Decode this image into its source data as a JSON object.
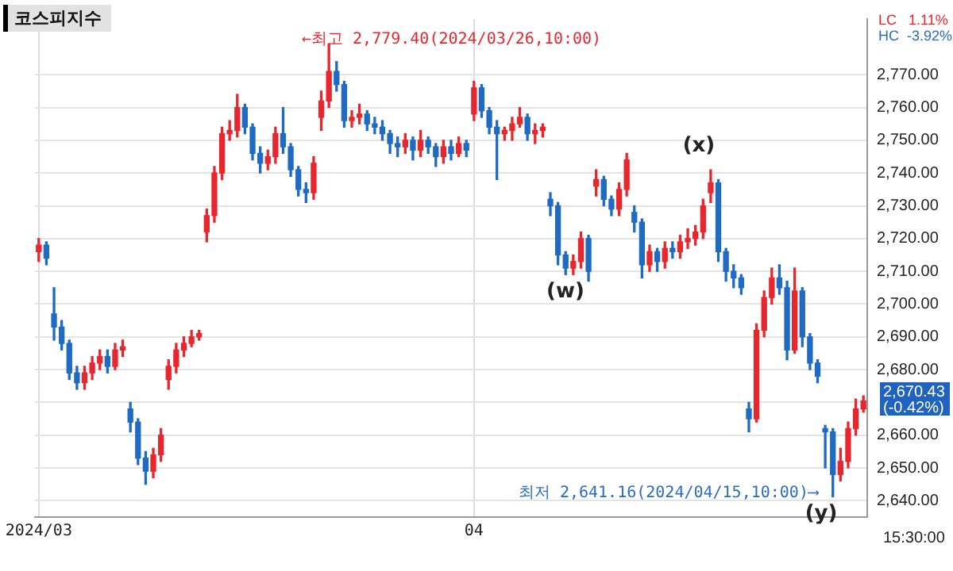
{
  "chart_data": {
    "type": "candlestick",
    "title": "코스피지수",
    "categories": [
      "2024/03",
      null,
      null,
      null,
      null,
      null,
      null,
      null,
      null,
      null,
      null,
      null,
      null,
      null,
      null,
      null,
      null,
      null,
      null,
      null,
      null,
      null,
      null,
      null,
      null,
      null,
      null,
      null,
      null,
      null,
      null,
      null,
      null,
      null,
      null,
      null,
      null,
      null,
      null,
      null,
      null,
      null,
      null,
      null,
      null,
      null,
      null,
      null,
      null,
      null,
      null,
      null,
      null,
      null,
      null,
      null,
      null,
      "04",
      null,
      null,
      null,
      null,
      null,
      null,
      null,
      null,
      null,
      null,
      null,
      null,
      null,
      null,
      null,
      null,
      null,
      null,
      null,
      null,
      null,
      null,
      null,
      null,
      null,
      null,
      null,
      null,
      null,
      null,
      null,
      null,
      null,
      null,
      null,
      null,
      null,
      null,
      null,
      null,
      null,
      null,
      null,
      null,
      null,
      null,
      null,
      null,
      null,
      null,
      null
    ],
    "ohlc": [
      [
        2716,
        2720,
        2713,
        2718
      ],
      [
        2718,
        2719,
        2712,
        2714
      ],
      [
        2697,
        2705,
        2689,
        2693
      ],
      [
        2693,
        2695,
        2686,
        2688
      ],
      [
        2688,
        2689,
        2677,
        2679
      ],
      [
        2679,
        2681,
        2674,
        2676
      ],
      [
        2676,
        2681,
        2674,
        2679
      ],
      [
        2679,
        2684,
        2677,
        2682
      ],
      [
        2682,
        2686,
        2680,
        2684
      ],
      [
        2684,
        2686,
        2679,
        2681
      ],
      [
        2681,
        2688,
        2680,
        2686
      ],
      [
        2686,
        2689,
        2684,
        2687
      ],
      [
        2668,
        2670,
        2661,
        2664
      ],
      [
        2664,
        2665,
        2651,
        2653
      ],
      [
        2653,
        2655,
        2645,
        2649
      ],
      [
        2649,
        2656,
        2647,
        2654
      ],
      [
        2654,
        2662,
        2652,
        2660
      ],
      [
        2677,
        2683,
        2674,
        2681
      ],
      [
        2681,
        2688,
        2679,
        2686
      ],
      [
        2686,
        2690,
        2684,
        2688
      ],
      [
        2688,
        2692,
        2687,
        2690
      ],
      [
        2690,
        2692,
        2689,
        2691
      ],
      [
        2722,
        2729,
        2719,
        2727
      ],
      [
        2727,
        2742,
        2725,
        2740
      ],
      [
        2740,
        2754,
        2738,
        2752
      ],
      [
        2752,
        2756,
        2750,
        2753
      ],
      [
        2753,
        2764,
        2751,
        2760
      ],
      [
        2760,
        2761,
        2752,
        2754
      ],
      [
        2754,
        2755,
        2744,
        2746
      ],
      [
        2746,
        2748,
        2740,
        2743
      ],
      [
        2743,
        2747,
        2741,
        2745
      ],
      [
        2745,
        2754,
        2743,
        2752
      ],
      [
        2752,
        2760,
        2746,
        2748
      ],
      [
        2748,
        2749,
        2739,
        2741
      ],
      [
        2741,
        2742,
        2733,
        2735
      ],
      [
        2735,
        2737,
        2731,
        2734
      ],
      [
        2734,
        2745,
        2732,
        2743
      ],
      [
        2757,
        2765,
        2753,
        2762
      ],
      [
        2762,
        2779.4,
        2760,
        2771
      ],
      [
        2771,
        2774,
        2765,
        2767
      ],
      [
        2767,
        2768,
        2754,
        2756
      ],
      [
        2756,
        2759,
        2754,
        2757
      ],
      [
        2757,
        2761,
        2755,
        2758
      ],
      [
        2758,
        2759,
        2753,
        2755
      ],
      [
        2755,
        2757,
        2752,
        2754
      ],
      [
        2754,
        2756,
        2750,
        2752
      ],
      [
        2752,
        2753,
        2746,
        2749
      ],
      [
        2749,
        2751,
        2745,
        2748
      ],
      [
        2748,
        2752,
        2746,
        2750
      ],
      [
        2750,
        2751,
        2744,
        2747
      ],
      [
        2747,
        2753,
        2745,
        2750
      ],
      [
        2750,
        2751,
        2746,
        2748
      ],
      [
        2748,
        2749,
        2742,
        2745
      ],
      [
        2745,
        2750,
        2743,
        2748
      ],
      [
        2748,
        2750,
        2744,
        2746
      ],
      [
        2746,
        2751,
        2745,
        2749
      ],
      [
        2749,
        2750,
        2745,
        2747
      ],
      [
        2758,
        2768,
        2756,
        2766
      ],
      [
        2766,
        2767,
        2757,
        2759
      ],
      [
        2759,
        2760,
        2752,
        2754
      ],
      [
        2754,
        2756,
        2738,
        2752
      ],
      [
        2752,
        2754,
        2750,
        2753
      ],
      [
        2753,
        2757,
        2750,
        2755
      ],
      [
        2755,
        2760,
        2754,
        2757
      ],
      [
        2757,
        2758,
        2750,
        2752
      ],
      [
        2752,
        2755,
        2749,
        2753
      ],
      [
        2753,
        2755,
        2751,
        2754
      ],
      [
        2732,
        2734,
        2727,
        2730
      ],
      [
        2730,
        2731,
        2712,
        2715
      ],
      [
        2715,
        2716,
        2709,
        2711
      ],
      [
        2711,
        2715,
        2709,
        2713
      ],
      [
        2713,
        2722,
        2711,
        2720
      ],
      [
        2720,
        2721,
        2707,
        2710
      ],
      [
        2736,
        2741,
        2733,
        2738
      ],
      [
        2738,
        2739,
        2730,
        2732
      ],
      [
        2732,
        2733,
        2727,
        2729
      ],
      [
        2729,
        2737,
        2727,
        2735
      ],
      [
        2735,
        2746,
        2733,
        2744
      ],
      [
        2728,
        2730,
        2722,
        2725
      ],
      [
        2725,
        2726,
        2708,
        2712
      ],
      [
        2712,
        2718,
        2710,
        2716
      ],
      [
        2716,
        2717,
        2710,
        2713
      ],
      [
        2713,
        2719,
        2711,
        2717
      ],
      [
        2717,
        2719,
        2714,
        2716
      ],
      [
        2716,
        2721,
        2714,
        2719
      ],
      [
        2719,
        2723,
        2717,
        2720
      ],
      [
        2720,
        2724,
        2718,
        2722
      ],
      [
        2722,
        2732,
        2720,
        2730
      ],
      [
        2734,
        2741,
        2731,
        2737
      ],
      [
        2737,
        2738,
        2713,
        2716
      ],
      [
        2716,
        2717,
        2707,
        2710
      ],
      [
        2710,
        2712,
        2705,
        2708
      ],
      [
        2708,
        2709,
        2703,
        2705
      ],
      [
        2668,
        2670,
        2661,
        2665
      ],
      [
        2665,
        2694,
        2664,
        2692
      ],
      [
        2692,
        2704,
        2690,
        2702
      ],
      [
        2702,
        2711,
        2700,
        2708
      ],
      [
        2708,
        2712,
        2703,
        2705
      ],
      [
        2705,
        2707,
        2683,
        2686
      ],
      [
        2686,
        2711,
        2685,
        2704
      ],
      [
        2704,
        2705,
        2687,
        2690
      ],
      [
        2690,
        2691,
        2680,
        2682
      ],
      [
        2682,
        2683,
        2676,
        2678
      ],
      [
        2662,
        2663,
        2650,
        2661
      ],
      [
        2661,
        2662,
        2641.16,
        2648
      ],
      [
        2648,
        2656,
        2646,
        2652
      ],
      [
        2652,
        2664,
        2650,
        2662
      ],
      [
        2662,
        2671,
        2660,
        2668
      ],
      [
        2668,
        2672,
        2667,
        2670.43
      ]
    ],
    "colors": [
      "#e8262d",
      "#1f6bc4",
      "#1f6bc4",
      "#1f6bc4",
      "#1f6bc4",
      "#1f6bc4",
      "#e8262d",
      "#e8262d",
      "#e8262d",
      "#1f6bc4",
      "#e8262d",
      "#e8262d",
      "#1f6bc4",
      "#1f6bc4",
      "#1f6bc4",
      "#e8262d",
      "#e8262d",
      "#e8262d",
      "#e8262d",
      "#e8262d",
      "#e8262d",
      "#e8262d",
      "#e8262d",
      "#e8262d",
      "#e8262d",
      "#e8262d",
      "#e8262d",
      "#1f6bc4",
      "#1f6bc4",
      "#1f6bc4",
      "#e8262d",
      "#e8262d",
      "#1f6bc4",
      "#1f6bc4",
      "#1f6bc4",
      "#1f6bc4",
      "#e8262d",
      "#e8262d",
      "#e8262d",
      "#1f6bc4",
      "#1f6bc4",
      "#e8262d",
      "#e8262d",
      "#1f6bc4",
      "#1f6bc4",
      "#1f6bc4",
      "#1f6bc4",
      "#1f6bc4",
      "#e8262d",
      "#1f6bc4",
      "#e8262d",
      "#1f6bc4",
      "#1f6bc4",
      "#e8262d",
      "#1f6bc4",
      "#e8262d",
      "#1f6bc4",
      "#e8262d",
      "#1f6bc4",
      "#1f6bc4",
      "#1f6bc4",
      "#e8262d",
      "#e8262d",
      "#e8262d",
      "#1f6bc4",
      "#e8262d",
      "#e8262d",
      "#1f6bc4",
      "#1f6bc4",
      "#1f6bc4",
      "#e8262d",
      "#e8262d",
      "#1f6bc4",
      "#e8262d",
      "#1f6bc4",
      "#1f6bc4",
      "#e8262d",
      "#e8262d",
      "#1f6bc4",
      "#1f6bc4",
      "#e8262d",
      "#1f6bc4",
      "#e8262d",
      "#1f6bc4",
      "#e8262d",
      "#e8262d",
      "#e8262d",
      "#e8262d",
      "#e8262d",
      "#1f6bc4",
      "#1f6bc4",
      "#1f6bc4",
      "#1f6bc4",
      "#1f6bc4",
      "#e8262d",
      "#e8262d",
      "#e8262d",
      "#1f6bc4",
      "#1f6bc4",
      "#e8262d",
      "#1f6bc4",
      "#1f6bc4",
      "#1f6bc4",
      "#1f6bc4",
      "#1f6bc4",
      "#e8262d",
      "#e8262d",
      "#e8262d",
      "#e8262d"
    ],
    "ylim": [
      2635,
      2787
    ],
    "yticks": [
      {
        "value": 2640,
        "label": "2,640.00"
      },
      {
        "value": 2650,
        "label": "2,650.00"
      },
      {
        "value": 2660,
        "label": "2,660.00"
      },
      {
        "value": 2670,
        "label": null
      },
      {
        "value": 2680,
        "label": "2,680.00"
      },
      {
        "value": 2690,
        "label": "2,690.00"
      },
      {
        "value": 2700,
        "label": "2,700.00"
      },
      {
        "value": 2710,
        "label": "2,710.00"
      },
      {
        "value": 2720,
        "label": "2,720.00"
      },
      {
        "value": 2730,
        "label": "2,730.00"
      },
      {
        "value": 2740,
        "label": "2,740.00"
      },
      {
        "value": 2750,
        "label": "2,750.00"
      },
      {
        "value": 2760,
        "label": "2,760.00"
      },
      {
        "value": 2770,
        "label": "2,770.00"
      }
    ],
    "grid": true,
    "annotations": [
      "←최고 2,779.40(2024/03/26,10:00)",
      "최저 2,641.16(2024/04/15,10:00)⟶",
      "(w)",
      "(x)",
      "(y)",
      "LC   1.11%",
      "HC  -3.92%",
      "2,670.43",
      "(-0.42%)",
      "15:30:00"
    ]
  }
}
